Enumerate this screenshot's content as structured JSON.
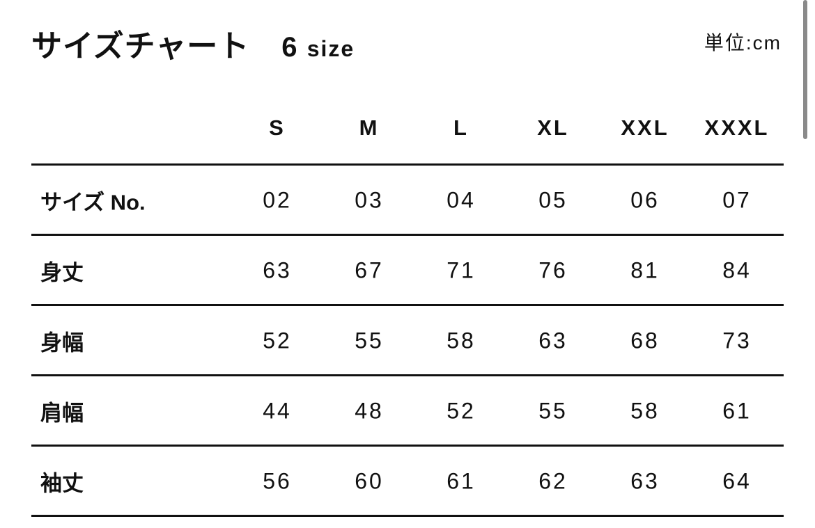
{
  "title": {
    "text": "サイズチャート",
    "count": "6",
    "count_unit": "size"
  },
  "unit_label": "単位:cm",
  "columns": [
    "S",
    "M",
    "L",
    "XL",
    "XXL",
    "XXXL"
  ],
  "rows": [
    {
      "label": "サイズ No.",
      "values": [
        "02",
        "03",
        "04",
        "05",
        "06",
        "07"
      ]
    },
    {
      "label": "身丈",
      "values": [
        "63",
        "67",
        "71",
        "76",
        "81",
        "84"
      ]
    },
    {
      "label": "身幅",
      "values": [
        "52",
        "55",
        "58",
        "63",
        "68",
        "73"
      ]
    },
    {
      "label": "肩幅",
      "values": [
        "44",
        "48",
        "52",
        "55",
        "58",
        "61"
      ]
    },
    {
      "label": "袖丈",
      "values": [
        "56",
        "60",
        "61",
        "62",
        "63",
        "64"
      ]
    }
  ]
}
